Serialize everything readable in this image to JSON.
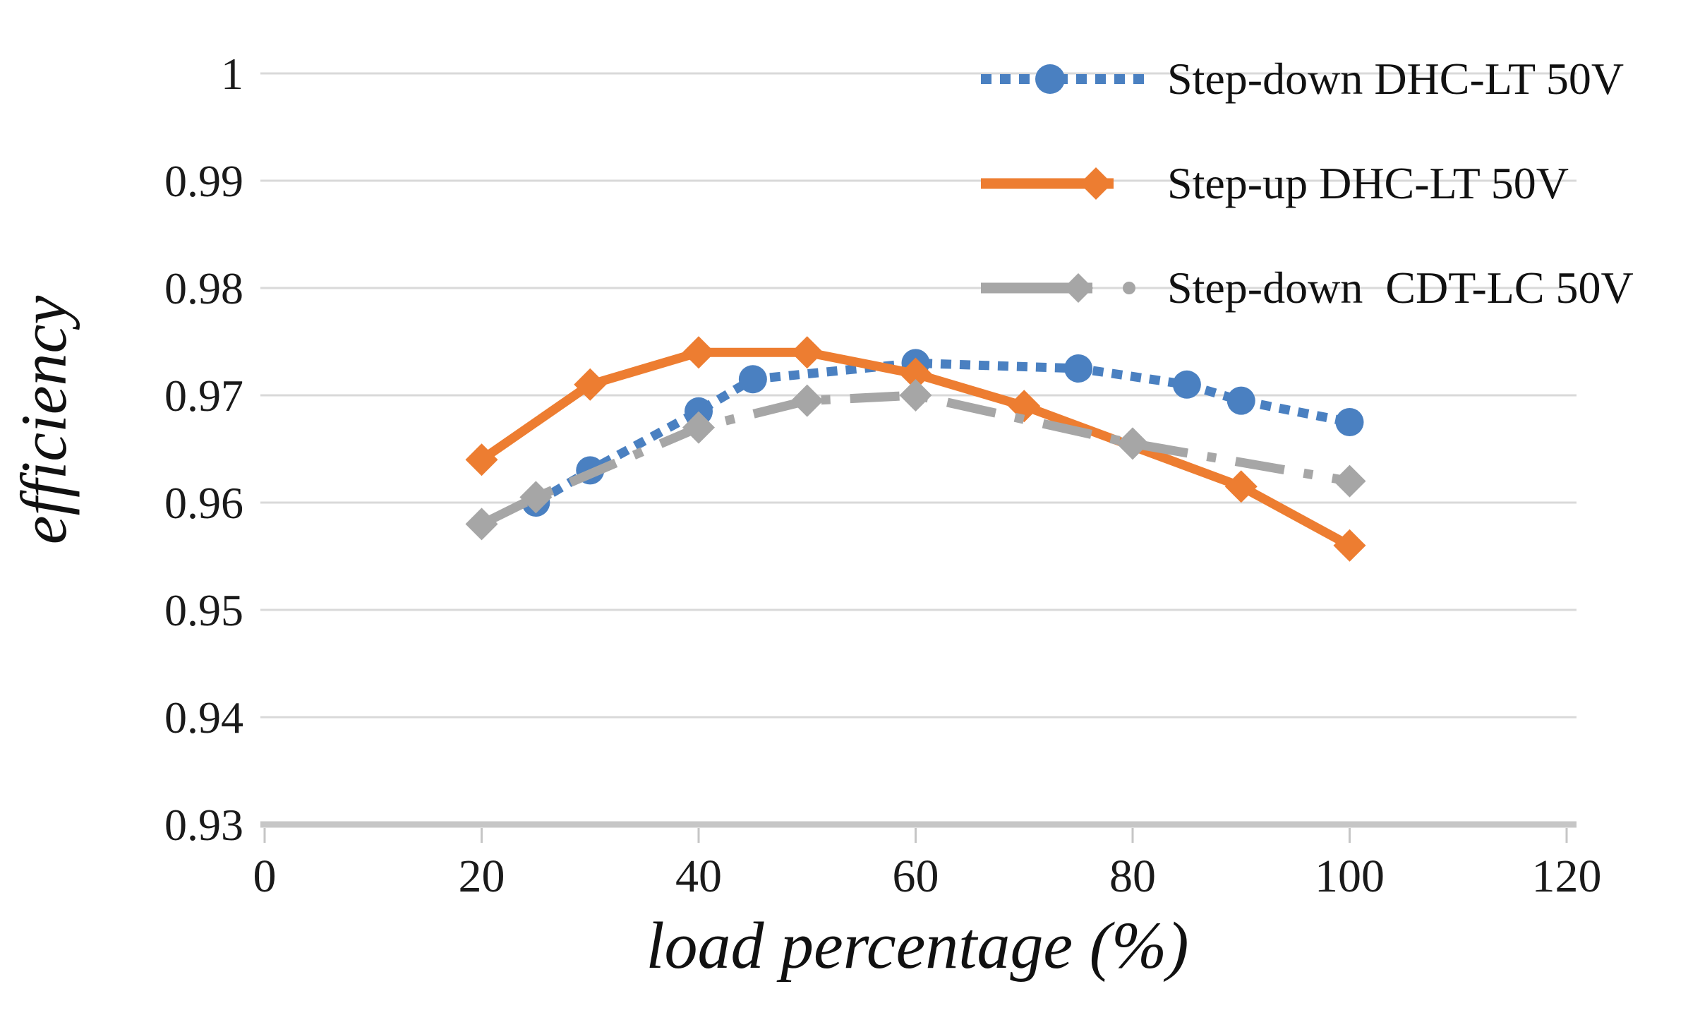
{
  "chart_data": {
    "type": "line",
    "title": "",
    "xlabel": "load percentage (%)",
    "ylabel": "efficiency",
    "xlim": [
      0,
      120
    ],
    "ylim": [
      0.93,
      1.0
    ],
    "grid": "horizontal",
    "legend_position": "top-right",
    "x_ticks": [
      {
        "v": 0,
        "label": "0"
      },
      {
        "v": 20,
        "label": "20"
      },
      {
        "v": 40,
        "label": "40"
      },
      {
        "v": 60,
        "label": "60"
      },
      {
        "v": 80,
        "label": "80"
      },
      {
        "v": 100,
        "label": "100"
      },
      {
        "v": 120,
        "label": "120"
      }
    ],
    "y_ticks": [
      {
        "v": 1.0,
        "label": "1"
      },
      {
        "v": 0.99,
        "label": "0.99"
      },
      {
        "v": 0.98,
        "label": "0.98"
      },
      {
        "v": 0.97,
        "label": "0.97"
      },
      {
        "v": 0.96,
        "label": "0.96"
      },
      {
        "v": 0.95,
        "label": "0.95"
      },
      {
        "v": 0.94,
        "label": "0.94"
      },
      {
        "v": 0.93,
        "label": "0.93"
      }
    ],
    "series": [
      {
        "name": "Step-down DHC-LT 50V",
        "color": "#4a80c1",
        "line_style": "dotted",
        "marker": "circle",
        "points": [
          [
            25,
            0.96
          ],
          [
            30,
            0.963
          ],
          [
            40,
            0.9685
          ],
          [
            45,
            0.9715
          ],
          [
            60,
            0.973
          ],
          [
            75,
            0.9725
          ],
          [
            85,
            0.971
          ],
          [
            90,
            0.9695
          ],
          [
            100,
            0.9675
          ]
        ]
      },
      {
        "name": "Step-up DHC-LT 50V",
        "color": "#ed7d31",
        "line_style": "solid",
        "marker": "diamond",
        "points": [
          [
            20,
            0.964
          ],
          [
            30,
            0.971
          ],
          [
            40,
            0.974
          ],
          [
            50,
            0.974
          ],
          [
            60,
            0.972
          ],
          [
            70,
            0.969
          ],
          [
            90,
            0.9615
          ],
          [
            100,
            0.956
          ]
        ]
      },
      {
        "name": "Step-down  CDT-LC 50V",
        "color": "#a6a6a6",
        "line_style": "dash-dot",
        "marker": "diamond",
        "points": [
          [
            20,
            0.958
          ],
          [
            25,
            0.9605
          ],
          [
            40,
            0.967
          ],
          [
            50,
            0.9695
          ],
          [
            60,
            0.97
          ],
          [
            80,
            0.9655
          ],
          [
            100,
            0.962
          ]
        ]
      }
    ]
  },
  "colors": {
    "gridline": "#d9d9d9",
    "axis_line": "#c6c6c6",
    "tick_text": "#1a1a1a"
  }
}
